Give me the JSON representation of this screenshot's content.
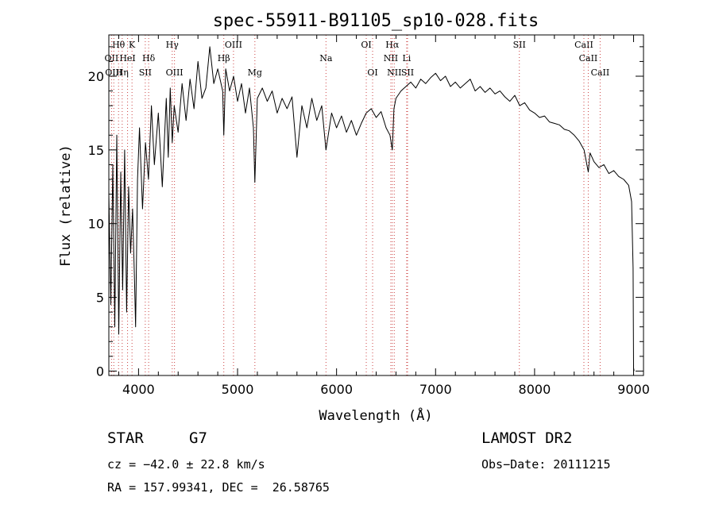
{
  "chart_data": {
    "type": "line",
    "title": "spec-55911-B91105_sp10-028.fits",
    "xlabel": "Wavelength (Å)",
    "ylabel": "Flux (relative)",
    "xlim": [
      3700,
      9100
    ],
    "ylim": [
      -0.3,
      22.8
    ],
    "xticks": [
      4000,
      5000,
      6000,
      7000,
      8000,
      9000
    ],
    "yticks": [
      0,
      5,
      10,
      15,
      20
    ],
    "grid": false,
    "series": [
      {
        "x": [
          3700,
          3720,
          3740,
          3760,
          3780,
          3800,
          3820,
          3840,
          3860,
          3880,
          3900,
          3920,
          3940,
          3960,
          3970,
          3990,
          4010,
          4040,
          4070,
          4100,
          4130,
          4160,
          4200,
          4240,
          4280,
          4300,
          4320,
          4340,
          4360,
          4400,
          4440,
          4480,
          4520,
          4560,
          4600,
          4640,
          4680,
          4720,
          4760,
          4800,
          4850,
          4861,
          4880,
          4920,
          4960,
          5000,
          5040,
          5080,
          5120,
          5160,
          5175,
          5200,
          5250,
          5300,
          5350,
          5400,
          5450,
          5500,
          5550,
          5600,
          5650,
          5700,
          5750,
          5800,
          5850,
          5893,
          5950,
          6000,
          6050,
          6100,
          6150,
          6200,
          6250,
          6300,
          6350,
          6400,
          6450,
          6500,
          6540,
          6563,
          6580,
          6600,
          6650,
          6700,
          6750,
          6800,
          6850,
          6900,
          6950,
          7000,
          7050,
          7100,
          7150,
          7200,
          7250,
          7300,
          7350,
          7400,
          7450,
          7500,
          7550,
          7600,
          7650,
          7700,
          7750,
          7800,
          7850,
          7900,
          7950,
          8000,
          8050,
          8100,
          8150,
          8200,
          8250,
          8300,
          8350,
          8400,
          8450,
          8500,
          8542,
          8560,
          8600,
          8650,
          8700,
          8750,
          8800,
          8850,
          8900,
          8950,
          8980,
          8995,
          9000,
          9005
        ],
        "y": [
          12.0,
          4.5,
          14.0,
          3.0,
          16.0,
          2.5,
          13.5,
          5.5,
          15.0,
          4.0,
          12.5,
          8.0,
          11.0,
          6.0,
          3.0,
          13.0,
          16.5,
          11.0,
          15.5,
          13.0,
          18.0,
          14.0,
          17.5,
          12.5,
          18.5,
          14.5,
          19.2,
          15.5,
          18.0,
          16.2,
          19.5,
          17.0,
          19.8,
          17.8,
          21.0,
          18.5,
          19.2,
          22.0,
          19.5,
          20.5,
          19.0,
          16.0,
          20.5,
          19.0,
          20.0,
          18.3,
          19.5,
          17.5,
          19.2,
          16.5,
          12.8,
          18.5,
          19.2,
          18.3,
          19.0,
          17.5,
          18.5,
          17.8,
          18.6,
          14.5,
          18.0,
          16.5,
          18.5,
          17.0,
          18.0,
          15.0,
          17.5,
          16.5,
          17.3,
          16.2,
          17.0,
          16.0,
          16.8,
          17.5,
          17.8,
          17.2,
          17.6,
          16.5,
          16.0,
          15.0,
          17.8,
          18.5,
          19.0,
          19.3,
          19.6,
          19.2,
          19.8,
          19.5,
          19.9,
          20.2,
          19.7,
          20.0,
          19.3,
          19.6,
          19.2,
          19.5,
          19.8,
          19.0,
          19.3,
          18.9,
          19.2,
          18.8,
          19.0,
          18.6,
          18.3,
          18.7,
          18.0,
          18.2,
          17.7,
          17.5,
          17.2,
          17.3,
          16.9,
          16.8,
          16.7,
          16.4,
          16.3,
          16.0,
          15.6,
          15.0,
          13.5,
          14.8,
          14.2,
          13.8,
          14.0,
          13.4,
          13.6,
          13.2,
          13.0,
          12.6,
          11.5,
          7.0,
          0.2,
          0.0
        ]
      }
    ],
    "line_markers": [
      {
        "label": "Hθ",
        "x": 3798,
        "row": 0
      },
      {
        "label": "K",
        "x": 3934,
        "row": 0
      },
      {
        "label": "Hγ",
        "x": 4340,
        "row": 0
      },
      {
        "label": "OIII",
        "x": 4959,
        "row": 0
      },
      {
        "label": "OI",
        "x": 6300,
        "row": 0
      },
      {
        "label": "Hα",
        "x": 6563,
        "row": 0
      },
      {
        "label": "SII",
        "x": 7846,
        "row": 0
      },
      {
        "label": "CaII",
        "x": 8498,
        "row": 0
      },
      {
        "label": "OII",
        "x": 3727,
        "row": 1
      },
      {
        "label": "HeI",
        "x": 3889,
        "row": 1
      },
      {
        "label": "Hδ",
        "x": 4102,
        "row": 1
      },
      {
        "label": "Hβ",
        "x": 4861,
        "row": 1
      },
      {
        "label": "Na",
        "x": 5893,
        "row": 1
      },
      {
        "label": "NII",
        "x": 6548,
        "row": 1
      },
      {
        "label": "Li",
        "x": 6708,
        "row": 1
      },
      {
        "label": "CaII",
        "x": 8542,
        "row": 1
      },
      {
        "label": "OIII",
        "x": 3750,
        "row": 2
      },
      {
        "label": "Hη",
        "x": 3835,
        "row": 2
      },
      {
        "label": "SII",
        "x": 4068,
        "row": 2
      },
      {
        "label": "OIII",
        "x": 4363,
        "row": 2
      },
      {
        "label": "Mg",
        "x": 5175,
        "row": 2
      },
      {
        "label": "OI",
        "x": 6364,
        "row": 2
      },
      {
        "label": "NII",
        "x": 6583,
        "row": 2
      },
      {
        "label": "SII",
        "x": 6717,
        "row": 2
      },
      {
        "label": "CaII",
        "x": 8662,
        "row": 2
      }
    ]
  },
  "info": {
    "object_type": "STAR",
    "subclass": "G7",
    "survey": "LAMOST DR2",
    "redshift_line": "cz = −42.0 ± 22.8 km/s",
    "obs_date": "Obs−Date: 20111215",
    "coords": "RA = 157.99341, DEC =  26.58765"
  }
}
